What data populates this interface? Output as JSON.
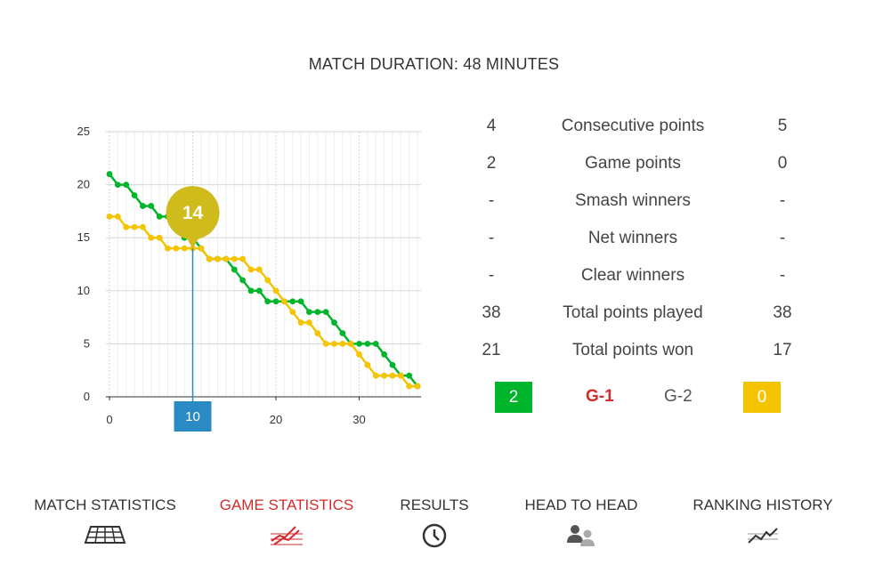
{
  "title": "MATCH DURATION: 48 MINUTES",
  "chart_data": {
    "type": "line",
    "title": "",
    "xlabel": "",
    "ylabel": "",
    "xlim": [
      0,
      37
    ],
    "ylim": [
      0,
      25
    ],
    "x_ticks": [
      "0",
      "10",
      "20",
      "30"
    ],
    "y_ticks": [
      "0",
      "5",
      "10",
      "15",
      "20",
      "25"
    ],
    "grid": true,
    "colors": {
      "green": "#00b52c",
      "yellow": "#f5c400"
    },
    "series": [
      {
        "values": [
          21,
          20,
          20,
          19,
          18,
          18,
          17,
          17,
          16,
          15,
          15,
          14,
          13,
          13,
          13,
          12,
          11,
          10,
          10,
          9,
          9,
          9,
          9,
          9,
          8,
          8,
          8,
          7,
          6,
          5,
          5,
          5,
          5,
          4,
          3,
          2,
          2,
          1
        ]
      },
      {
        "values": [
          17,
          17,
          16,
          16,
          16,
          15,
          15,
          14,
          14,
          14,
          14,
          14,
          13,
          13,
          13,
          13,
          13,
          12,
          12,
          11,
          10,
          9,
          8,
          7,
          7,
          6,
          5,
          5,
          5,
          5,
          4,
          3,
          2,
          2,
          2,
          2,
          1,
          1
        ]
      }
    ],
    "tooltip": {
      "value": "14",
      "x_label": "10"
    }
  },
  "stats": [
    {
      "left": "4",
      "label": "Consecutive points",
      "right": "5"
    },
    {
      "left": "2",
      "label": "Game points",
      "right": "0"
    },
    {
      "left": "-",
      "label": "Smash winners",
      "right": "-"
    },
    {
      "left": "-",
      "label": "Net winners",
      "right": "-"
    },
    {
      "left": "-",
      "label": "Clear winners",
      "right": "-"
    },
    {
      "left": "38",
      "label": "Total points played",
      "right": "38"
    },
    {
      "left": "21",
      "label": "Total points won",
      "right": "17"
    }
  ],
  "games": {
    "left_score": "2",
    "g1": "G-1",
    "g2": "G-2",
    "right_score": "0"
  },
  "nav": [
    {
      "label": "MATCH STATISTICS",
      "icon": "court-icon"
    },
    {
      "label": "GAME STATISTICS",
      "icon": "trend-lines-icon",
      "active": true
    },
    {
      "label": "RESULTS",
      "icon": "clock-icon"
    },
    {
      "label": "HEAD TO HEAD",
      "icon": "people-icon"
    },
    {
      "label": "RANKING HISTORY",
      "icon": "ranking-line-icon"
    }
  ]
}
